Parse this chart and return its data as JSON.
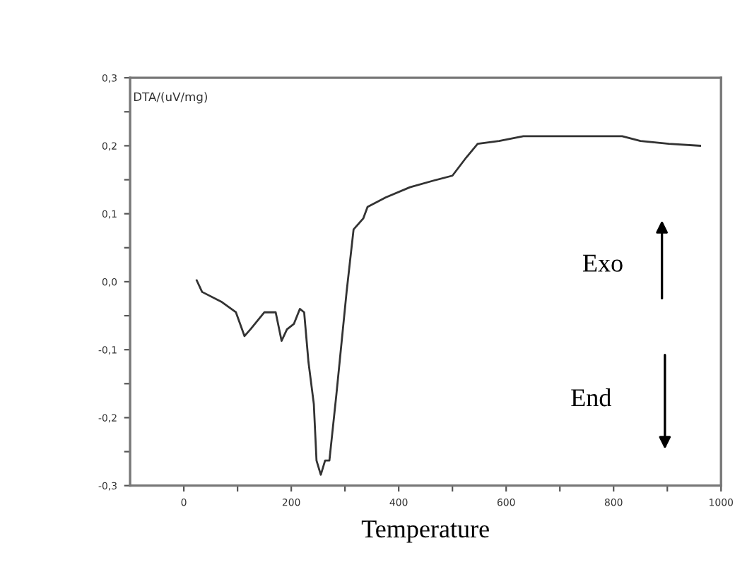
{
  "chart_data": {
    "type": "line",
    "ylabel": "DTA/(uV/mg)",
    "xlabel": "Temperature",
    "x": [
      24,
      34,
      71,
      97,
      113,
      124,
      150,
      171,
      182,
      192,
      205,
      216,
      224,
      232,
      242,
      247,
      255,
      263,
      271,
      284,
      303,
      316,
      334,
      342,
      376,
      421,
      466,
      500,
      526,
      547,
      587,
      632,
      729,
      816,
      850,
      903,
      961
    ],
    "series": [
      {
        "color": "#333333",
        "values": [
          0.002,
          -0.015,
          -0.03,
          -0.045,
          -0.08,
          -0.07,
          -0.045,
          -0.045,
          -0.087,
          -0.07,
          -0.062,
          -0.04,
          -0.045,
          -0.118,
          -0.18,
          -0.263,
          -0.284,
          -0.263,
          -0.263,
          -0.166,
          -0.015,
          0.077,
          0.093,
          0.11,
          0.124,
          0.139,
          0.149,
          0.156,
          0.183,
          0.203,
          0.207,
          0.214,
          0.214,
          0.214,
          0.207,
          0.203,
          0.2
        ]
      }
    ],
    "xlim": [
      -100,
      1000
    ],
    "xticks": [
      0,
      {
        "value": 100,
        "label": null
      },
      200,
      {
        "value": 300,
        "label": null
      },
      400,
      {
        "value": 500,
        "label": null
      },
      600,
      {
        "value": 700,
        "label": null
      },
      800,
      {
        "value": 900,
        "label": null
      },
      1000
    ],
    "ylim": [
      -0.3,
      0.3
    ],
    "yticks": [
      {
        "value": -0.3,
        "label": "-0,3"
      },
      {
        "value": -0.25,
        "label": null
      },
      {
        "value": -0.2,
        "label": "-0,2"
      },
      {
        "value": -0.15,
        "label": null
      },
      {
        "value": -0.1,
        "label": "-0,1"
      },
      {
        "value": -0.05,
        "label": null
      },
      {
        "value": 0,
        "label": "0,0"
      },
      {
        "value": 0.05,
        "label": null
      },
      {
        "value": 0.1,
        "label": "0,1"
      },
      {
        "value": 0.15,
        "label": null
      },
      {
        "value": 0.2,
        "label": "0,2"
      },
      {
        "value": 0.25,
        "label": null
      },
      {
        "value": 0.3,
        "label": "0,3"
      }
    ],
    "annotations": [
      "Exo",
      "End"
    ],
    "grid": false,
    "marker": "none",
    "line_style": "solid"
  }
}
